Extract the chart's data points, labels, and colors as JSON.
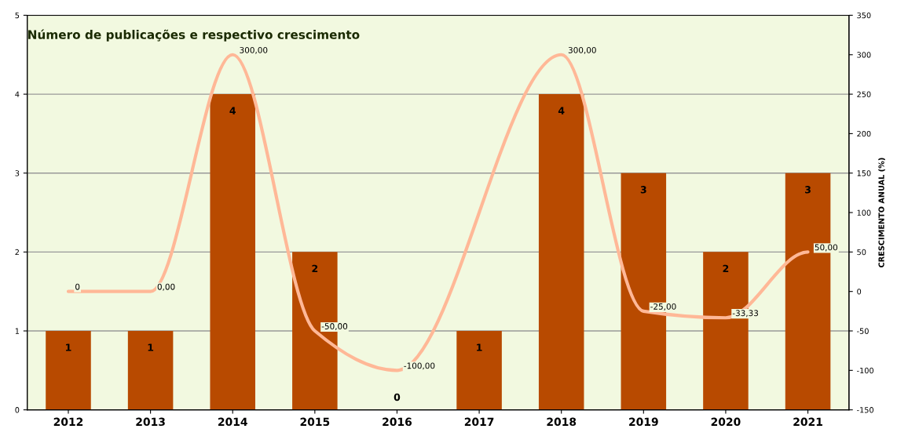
{
  "chart_data": {
    "type": "bar",
    "title": "Número de publicações e respectivo crescimento",
    "y2label": "CRESCIMENTO ANUAL (%)",
    "categories": [
      "2012",
      "2013",
      "2014",
      "2015",
      "2016",
      "2017",
      "2018",
      "2019",
      "2020",
      "2021"
    ],
    "series": [
      {
        "color": "#b84a00",
        "values": [
          1,
          1,
          4,
          2,
          0,
          1,
          4,
          3,
          2,
          3
        ],
        "data_labels": true
      },
      {
        "type": "line",
        "axis": "y2",
        "color": "#ffb897",
        "values": [
          0,
          0,
          300,
          -50,
          -100,
          null,
          300,
          -25,
          -33.33,
          50
        ],
        "value_labels": [
          "0",
          "0,00",
          "300,00",
          "-50,00",
          "-100,00",
          null,
          "300,00",
          "-25,00",
          "-33,33",
          "50,00"
        ]
      }
    ],
    "ylim": [
      0,
      5
    ],
    "yticks": [
      0,
      1,
      2,
      3,
      4,
      5
    ],
    "y2lim": [
      -150,
      350
    ],
    "y2ticks": [
      -150,
      -100,
      -50,
      0,
      50,
      100,
      150,
      200,
      250,
      300,
      350
    ],
    "grid": "y",
    "legend": false
  }
}
